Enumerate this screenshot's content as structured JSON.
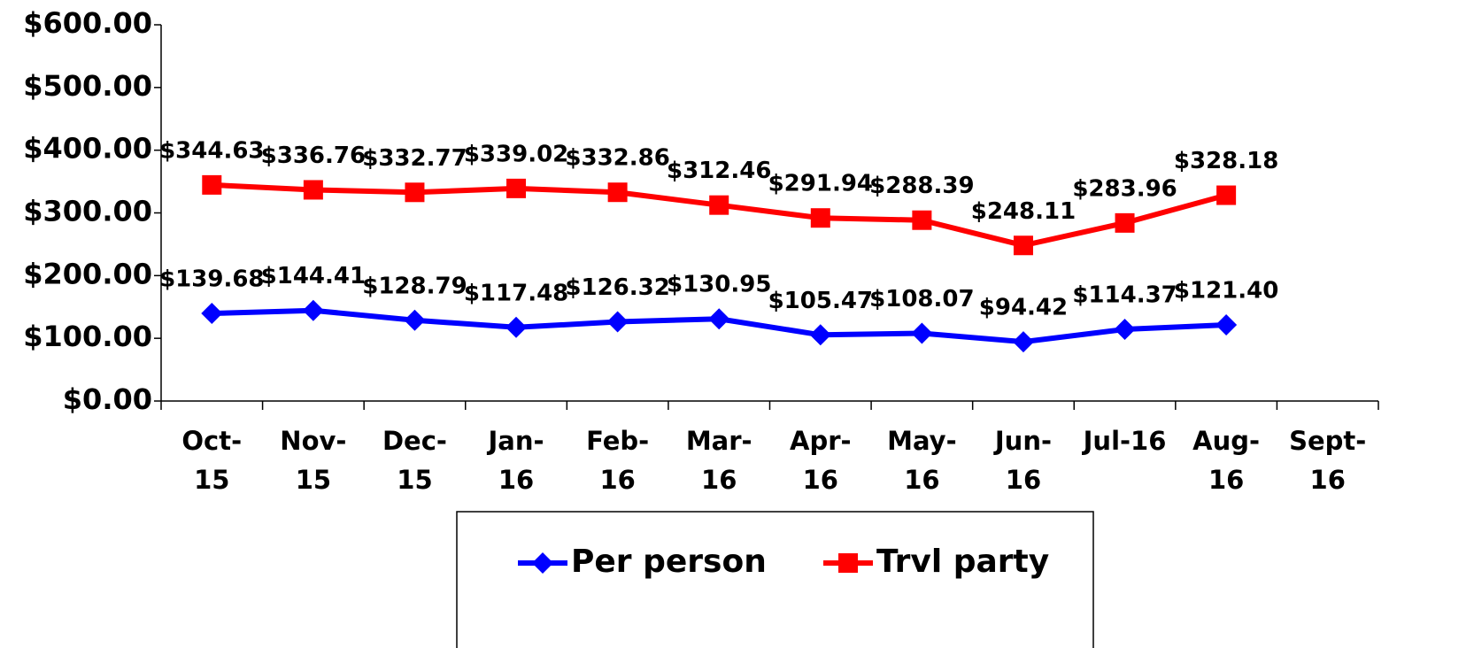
{
  "chart_data": {
    "type": "line",
    "categories": [
      "Oct-\n15",
      "Nov-\n15",
      "Dec-\n15",
      "Jan-\n16",
      "Feb-\n16",
      "Mar-\n16",
      "Apr-\n16",
      "May-\n16",
      "Jun-\n16",
      "Jul-16",
      "Aug-\n16",
      "Sept-\n16"
    ],
    "series": [
      {
        "name": "Per person",
        "color": "#0000ff",
        "marker": "diamond",
        "values": [
          139.68,
          144.41,
          128.79,
          117.48,
          126.32,
          130.95,
          105.47,
          108.07,
          94.42,
          114.37,
          121.4,
          null
        ],
        "value_labels": [
          "$139.68",
          "$144.41",
          "$128.79",
          "$117.48",
          "$126.32",
          "$130.95",
          "$105.47",
          "$108.07",
          "$94.42",
          "$114.37",
          "$121.40",
          null
        ]
      },
      {
        "name": "Trvl party",
        "color": "#ff0000",
        "marker": "square",
        "values": [
          344.63,
          336.76,
          332.77,
          339.02,
          332.86,
          312.46,
          291.94,
          288.39,
          248.11,
          283.96,
          328.18,
          null
        ],
        "value_labels": [
          "$344.63",
          "$336.76",
          "$332.77",
          "$339.02",
          "$332.86",
          "$312.46",
          "$291.94",
          "$288.39",
          "$248.11",
          "$283.96",
          "$328.18",
          null
        ]
      }
    ],
    "ylim": [
      0,
      600
    ],
    "yticks": [
      {
        "value": 0,
        "label": "$0.00"
      },
      {
        "value": 100,
        "label": "$100.00"
      },
      {
        "value": 200,
        "label": "$200.00"
      },
      {
        "value": 300,
        "label": "$300.00"
      },
      {
        "value": 400,
        "label": "$400.00"
      },
      {
        "value": 500,
        "label": "$500.00"
      },
      {
        "value": 600,
        "label": "$600.00"
      }
    ],
    "legend": "bottom",
    "grid": false
  }
}
